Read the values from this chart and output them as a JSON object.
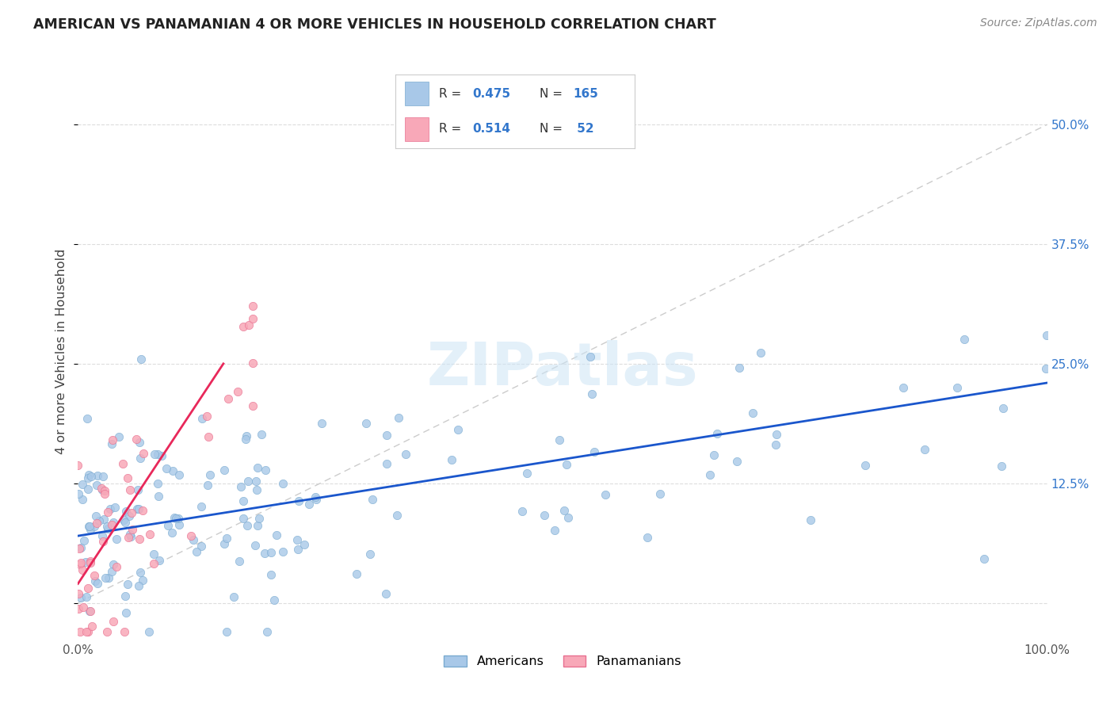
{
  "title": "AMERICAN VS PANAMANIAN 4 OR MORE VEHICLES IN HOUSEHOLD CORRELATION CHART",
  "source": "Source: ZipAtlas.com",
  "ylabel": "4 or more Vehicles in Household",
  "xlim": [
    0,
    1.0
  ],
  "ylim": [
    -0.035,
    0.56
  ],
  "american_color": "#a8c8e8",
  "american_edge_color": "#7aaad0",
  "panamanian_color": "#f8a8b8",
  "panamanian_edge_color": "#e87090",
  "american_line_color": "#1a56cc",
  "panamanian_line_color": "#e8285a",
  "diag_line_color": "#cccccc",
  "right_tick_color": "#3377cc",
  "R_american": 0.475,
  "N_american": 165,
  "R_panamanian": 0.514,
  "N_panamanian": 52,
  "watermark": "ZIPatlas",
  "legend_R_color": "#3377cc",
  "legend_N_color": "#3377cc"
}
